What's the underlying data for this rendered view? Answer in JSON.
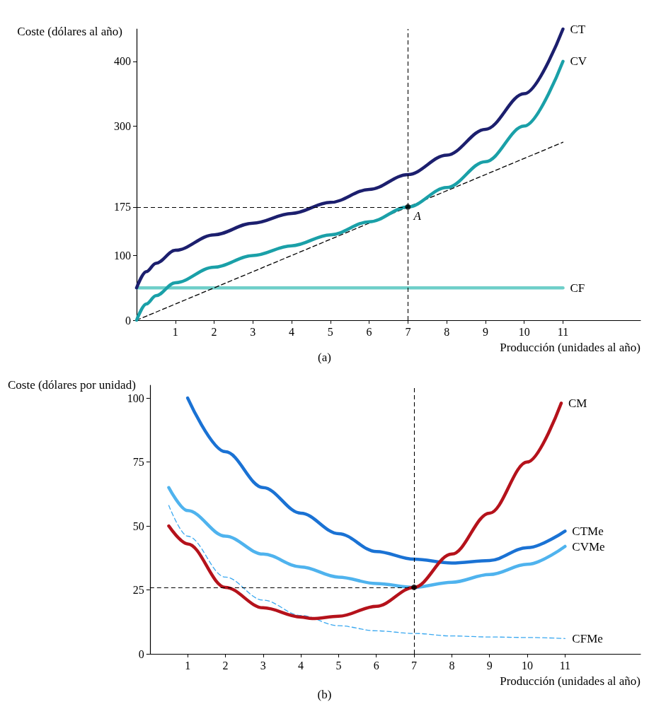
{
  "chart_data": [
    {
      "type": "line",
      "ylabel": "Coste (dólares al año)",
      "xlabel": "Producción (unidades al año)",
      "annotations": [
        "(a)",
        {
          "text": "A",
          "x": 7,
          "y": 175
        }
      ],
      "xlim": [
        0,
        13
      ],
      "xticks": [
        1,
        2,
        3,
        4,
        5,
        6,
        7,
        8,
        9,
        10,
        11
      ],
      "ylim": [
        0,
        450
      ],
      "yticks": [
        0,
        100,
        175,
        300,
        400
      ],
      "grid": false,
      "legend": false,
      "marker": "none",
      "series": [
        {
          "name": "CF",
          "color": "#6ecfc9",
          "x": [
            0,
            11
          ],
          "values": [
            50,
            50
          ]
        },
        {
          "color": "#000000",
          "line_style": "dashed",
          "x": [
            0,
            11
          ],
          "values": [
            0,
            275
          ]
        },
        {
          "name": "CV",
          "color": "#1aa0a8",
          "x": [
            0,
            0.25,
            0.5,
            1,
            2,
            3,
            4,
            5,
            6,
            7,
            8,
            9,
            10,
            11
          ],
          "values": [
            0,
            25,
            38,
            58,
            82,
            100,
            115,
            132,
            152,
            175,
            205,
            245,
            300,
            400
          ]
        },
        {
          "name": "CT",
          "color": "#1c1f6e",
          "x": [
            0,
            0.25,
            0.5,
            1,
            2,
            3,
            4,
            5,
            6,
            7,
            8,
            9,
            10,
            11
          ],
          "values": [
            50,
            75,
            88,
            108,
            132,
            150,
            165,
            182,
            202,
            225,
            255,
            295,
            350,
            450
          ]
        },
        {
          "type": "scatter",
          "marker": "circle",
          "color": "#000000",
          "x": [
            7
          ],
          "values": [
            175
          ]
        }
      ],
      "ref_lines": [
        {
          "axis": "y",
          "value": 175,
          "color": "#000000",
          "line_style": "dashed"
        },
        {
          "axis": "x",
          "value": 7,
          "color": "#000000",
          "line_style": "dashed"
        }
      ]
    },
    {
      "type": "line",
      "ylabel": "Coste (dólares por unidad)",
      "xlabel": "Producción (unidades al año)",
      "annotations": [
        "(b)"
      ],
      "xlim": [
        0,
        13
      ],
      "xticks": [
        1,
        2,
        3,
        4,
        5,
        6,
        7,
        8,
        9,
        10,
        11
      ],
      "ylim": [
        0,
        105
      ],
      "yticks": [
        0,
        25,
        50,
        75,
        100
      ],
      "grid": false,
      "legend": false,
      "marker": "none",
      "series": [
        {
          "name": "CFMe",
          "color": "#3aa8f0",
          "line_style": "dashed",
          "x": [
            0.5,
            1,
            2,
            3,
            4,
            5,
            6,
            7,
            8,
            9,
            10,
            11
          ],
          "values": [
            58,
            46,
            30,
            21,
            15,
            11,
            9,
            8,
            7,
            6.6,
            6.4,
            6
          ]
        },
        {
          "name": "CVMe",
          "color": "#4fb3ee",
          "x": [
            0.5,
            1,
            2,
            3,
            4,
            5,
            6,
            7,
            8,
            9,
            10,
            11
          ],
          "values": [
            65,
            56,
            46,
            39,
            34,
            30,
            27.5,
            26,
            28,
            31,
            35,
            42
          ]
        },
        {
          "name": "CTMe",
          "color": "#1a72d4",
          "x": [
            1,
            2,
            3,
            4,
            5,
            6,
            7,
            8,
            9,
            10,
            11
          ],
          "values": [
            100,
            79,
            65,
            55,
            47,
            40,
            37,
            35.5,
            36.5,
            41.5,
            48
          ]
        },
        {
          "name": "CM",
          "color": "#b5121b",
          "x": [
            0.5,
            1,
            2,
            3,
            4,
            4.3,
            5,
            6,
            7,
            8,
            9,
            10,
            10.9
          ],
          "values": [
            50,
            43,
            26,
            18,
            14.4,
            13.8,
            14.7,
            18.6,
            26,
            39,
            55,
            75,
            98
          ]
        },
        {
          "type": "scatter",
          "marker": "circle",
          "color": "#000000",
          "x": [
            7
          ],
          "values": [
            26
          ]
        }
      ],
      "ref_lines": [
        {
          "axis": "y",
          "value": 26,
          "color": "#000000",
          "line_style": "dashed"
        },
        {
          "axis": "x",
          "value": 7,
          "color": "#000000",
          "line_style": "dashed"
        }
      ]
    }
  ]
}
